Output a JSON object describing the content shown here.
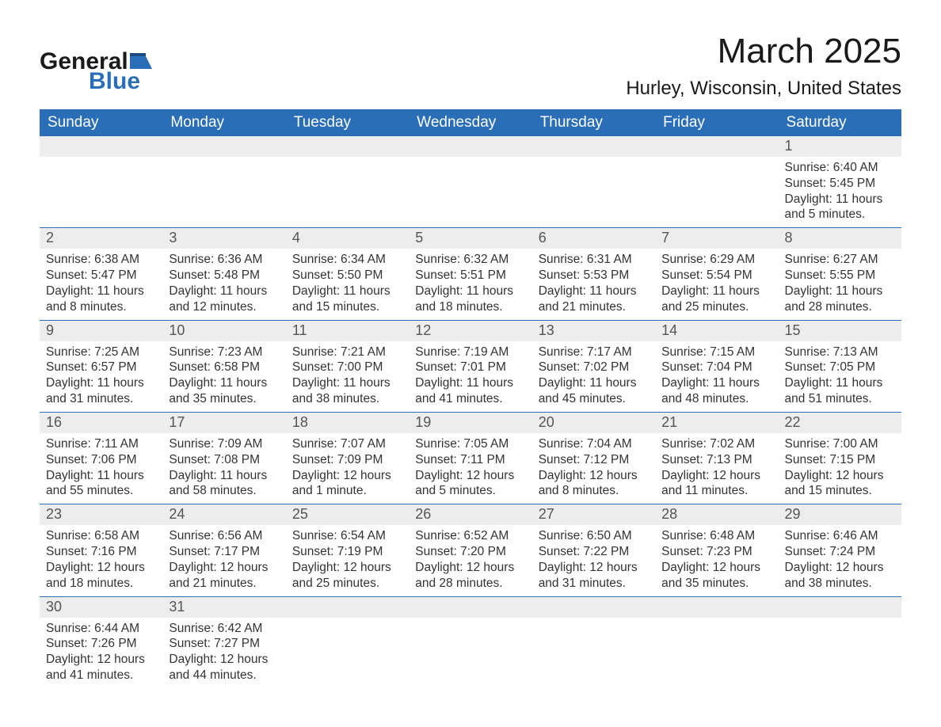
{
  "brand": {
    "word1": "General",
    "word2": "Blue"
  },
  "title": "March 2025",
  "subtitle": "Hurley, Wisconsin, United States",
  "colors": {
    "header_bg": "#2a6eb8",
    "header_text": "#ffffff",
    "daynum_bg": "#ededed",
    "row_divider": "#2a6eb8",
    "body_bg": "#ffffff",
    "text": "#333333"
  },
  "typography": {
    "title_fontsize": 44,
    "subtitle_fontsize": 24,
    "header_fontsize": 19,
    "daynum_fontsize": 18,
    "body_fontsize": 15.5
  },
  "day_headers": [
    "Sunday",
    "Monday",
    "Tuesday",
    "Wednesday",
    "Thursday",
    "Friday",
    "Saturday"
  ],
  "weeks": [
    [
      null,
      null,
      null,
      null,
      null,
      null,
      {
        "n": "1",
        "sunrise": "Sunrise: 6:40 AM",
        "sunset": "Sunset: 5:45 PM",
        "daylight": "Daylight: 11 hours and 5 minutes."
      }
    ],
    [
      {
        "n": "2",
        "sunrise": "Sunrise: 6:38 AM",
        "sunset": "Sunset: 5:47 PM",
        "daylight": "Daylight: 11 hours and 8 minutes."
      },
      {
        "n": "3",
        "sunrise": "Sunrise: 6:36 AM",
        "sunset": "Sunset: 5:48 PM",
        "daylight": "Daylight: 11 hours and 12 minutes."
      },
      {
        "n": "4",
        "sunrise": "Sunrise: 6:34 AM",
        "sunset": "Sunset: 5:50 PM",
        "daylight": "Daylight: 11 hours and 15 minutes."
      },
      {
        "n": "5",
        "sunrise": "Sunrise: 6:32 AM",
        "sunset": "Sunset: 5:51 PM",
        "daylight": "Daylight: 11 hours and 18 minutes."
      },
      {
        "n": "6",
        "sunrise": "Sunrise: 6:31 AM",
        "sunset": "Sunset: 5:53 PM",
        "daylight": "Daylight: 11 hours and 21 minutes."
      },
      {
        "n": "7",
        "sunrise": "Sunrise: 6:29 AM",
        "sunset": "Sunset: 5:54 PM",
        "daylight": "Daylight: 11 hours and 25 minutes."
      },
      {
        "n": "8",
        "sunrise": "Sunrise: 6:27 AM",
        "sunset": "Sunset: 5:55 PM",
        "daylight": "Daylight: 11 hours and 28 minutes."
      }
    ],
    [
      {
        "n": "9",
        "sunrise": "Sunrise: 7:25 AM",
        "sunset": "Sunset: 6:57 PM",
        "daylight": "Daylight: 11 hours and 31 minutes."
      },
      {
        "n": "10",
        "sunrise": "Sunrise: 7:23 AM",
        "sunset": "Sunset: 6:58 PM",
        "daylight": "Daylight: 11 hours and 35 minutes."
      },
      {
        "n": "11",
        "sunrise": "Sunrise: 7:21 AM",
        "sunset": "Sunset: 7:00 PM",
        "daylight": "Daylight: 11 hours and 38 minutes."
      },
      {
        "n": "12",
        "sunrise": "Sunrise: 7:19 AM",
        "sunset": "Sunset: 7:01 PM",
        "daylight": "Daylight: 11 hours and 41 minutes."
      },
      {
        "n": "13",
        "sunrise": "Sunrise: 7:17 AM",
        "sunset": "Sunset: 7:02 PM",
        "daylight": "Daylight: 11 hours and 45 minutes."
      },
      {
        "n": "14",
        "sunrise": "Sunrise: 7:15 AM",
        "sunset": "Sunset: 7:04 PM",
        "daylight": "Daylight: 11 hours and 48 minutes."
      },
      {
        "n": "15",
        "sunrise": "Sunrise: 7:13 AM",
        "sunset": "Sunset: 7:05 PM",
        "daylight": "Daylight: 11 hours and 51 minutes."
      }
    ],
    [
      {
        "n": "16",
        "sunrise": "Sunrise: 7:11 AM",
        "sunset": "Sunset: 7:06 PM",
        "daylight": "Daylight: 11 hours and 55 minutes."
      },
      {
        "n": "17",
        "sunrise": "Sunrise: 7:09 AM",
        "sunset": "Sunset: 7:08 PM",
        "daylight": "Daylight: 11 hours and 58 minutes."
      },
      {
        "n": "18",
        "sunrise": "Sunrise: 7:07 AM",
        "sunset": "Sunset: 7:09 PM",
        "daylight": "Daylight: 12 hours and 1 minute."
      },
      {
        "n": "19",
        "sunrise": "Sunrise: 7:05 AM",
        "sunset": "Sunset: 7:11 PM",
        "daylight": "Daylight: 12 hours and 5 minutes."
      },
      {
        "n": "20",
        "sunrise": "Sunrise: 7:04 AM",
        "sunset": "Sunset: 7:12 PM",
        "daylight": "Daylight: 12 hours and 8 minutes."
      },
      {
        "n": "21",
        "sunrise": "Sunrise: 7:02 AM",
        "sunset": "Sunset: 7:13 PM",
        "daylight": "Daylight: 12 hours and 11 minutes."
      },
      {
        "n": "22",
        "sunrise": "Sunrise: 7:00 AM",
        "sunset": "Sunset: 7:15 PM",
        "daylight": "Daylight: 12 hours and 15 minutes."
      }
    ],
    [
      {
        "n": "23",
        "sunrise": "Sunrise: 6:58 AM",
        "sunset": "Sunset: 7:16 PM",
        "daylight": "Daylight: 12 hours and 18 minutes."
      },
      {
        "n": "24",
        "sunrise": "Sunrise: 6:56 AM",
        "sunset": "Sunset: 7:17 PM",
        "daylight": "Daylight: 12 hours and 21 minutes."
      },
      {
        "n": "25",
        "sunrise": "Sunrise: 6:54 AM",
        "sunset": "Sunset: 7:19 PM",
        "daylight": "Daylight: 12 hours and 25 minutes."
      },
      {
        "n": "26",
        "sunrise": "Sunrise: 6:52 AM",
        "sunset": "Sunset: 7:20 PM",
        "daylight": "Daylight: 12 hours and 28 minutes."
      },
      {
        "n": "27",
        "sunrise": "Sunrise: 6:50 AM",
        "sunset": "Sunset: 7:22 PM",
        "daylight": "Daylight: 12 hours and 31 minutes."
      },
      {
        "n": "28",
        "sunrise": "Sunrise: 6:48 AM",
        "sunset": "Sunset: 7:23 PM",
        "daylight": "Daylight: 12 hours and 35 minutes."
      },
      {
        "n": "29",
        "sunrise": "Sunrise: 6:46 AM",
        "sunset": "Sunset: 7:24 PM",
        "daylight": "Daylight: 12 hours and 38 minutes."
      }
    ],
    [
      {
        "n": "30",
        "sunrise": "Sunrise: 6:44 AM",
        "sunset": "Sunset: 7:26 PM",
        "daylight": "Daylight: 12 hours and 41 minutes."
      },
      {
        "n": "31",
        "sunrise": "Sunrise: 6:42 AM",
        "sunset": "Sunset: 7:27 PM",
        "daylight": "Daylight: 12 hours and 44 minutes."
      },
      null,
      null,
      null,
      null,
      null
    ]
  ]
}
